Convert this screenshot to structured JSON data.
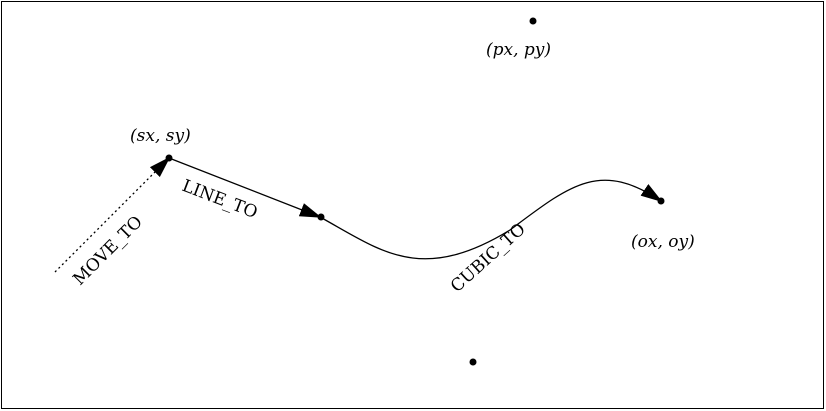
{
  "labels": {
    "start_point": "(sx, sy)",
    "control_point": "(px, py)",
    "end_point": "(ox, oy)",
    "move_to": "MOVE_TO",
    "line_to": "LINE_TO",
    "cubic_to": "CUBIC_TO"
  },
  "colors": {
    "stroke": "#000000",
    "background": "#ffffff"
  }
}
